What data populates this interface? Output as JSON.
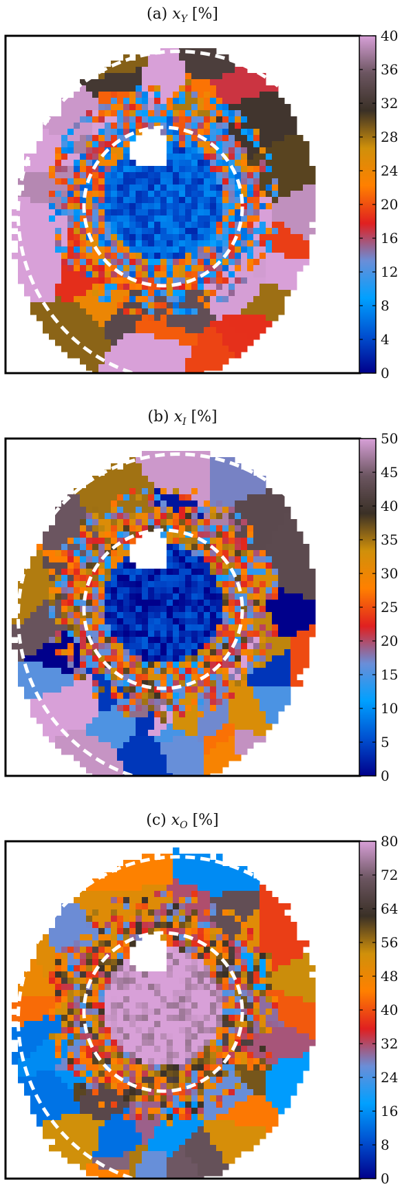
{
  "chart_data": [
    {
      "type": "heatmap",
      "title": "(a) x_Y [%]",
      "title_text": "(a) ",
      "title_symbol": "x",
      "title_subscript": "Y",
      "title_unit": " [%]",
      "colorbar": {
        "ticks": [
          0,
          4,
          8,
          12,
          16,
          20,
          24,
          28,
          32,
          36,
          40
        ],
        "range": [
          0,
          40
        ]
      },
      "features": {
        "central_region_level": 5,
        "inner_ring_level": 16,
        "outer_region_levels": [
          18,
          29,
          33,
          40,
          22
        ],
        "masked_hole": "white circular gap near upper centre",
        "dashed_circles": 2
      }
    },
    {
      "type": "heatmap",
      "title": "(b) x_I [%]",
      "title_text": "(b) ",
      "title_symbol": "x",
      "title_subscript": "I",
      "title_unit": " [%]",
      "colorbar": {
        "ticks": [
          0,
          5,
          10,
          15,
          20,
          25,
          30,
          35,
          40,
          45,
          50
        ],
        "range": [
          0,
          50
        ]
      },
      "features": {
        "central_region_level": 3,
        "inner_ring_level": 25,
        "outer_region_levels": [
          27,
          33,
          44,
          50,
          15,
          2
        ],
        "masked_hole": "white circular gap near upper centre",
        "dashed_circles": 2
      }
    },
    {
      "type": "heatmap",
      "title": "(c) x_O [%]",
      "title_text": "(c) ",
      "title_symbol": "x",
      "title_subscript": "O",
      "title_unit": " [%]",
      "colorbar": {
        "ticks": [
          0,
          8,
          16,
          24,
          32,
          40,
          48,
          56,
          64,
          72,
          80
        ],
        "range": [
          0,
          80
        ]
      },
      "features": {
        "central_region_level": 80,
        "inner_ring_level": 45,
        "outer_region_levels": [
          42,
          52,
          60,
          30,
          14,
          70
        ],
        "masked_hole": "white circular gap near upper centre",
        "dashed_circles": 2
      }
    }
  ],
  "colors": {
    "frame": "#000000",
    "dashed_circle": "#ffffff",
    "colormap": [
      "#00008b",
      "#0050d0",
      "#00a0ff",
      "#6a8ed8",
      "#e02020",
      "#ff8000",
      "#d0900a",
      "#3a3026",
      "#6b5560",
      "#d8a0d8"
    ]
  }
}
